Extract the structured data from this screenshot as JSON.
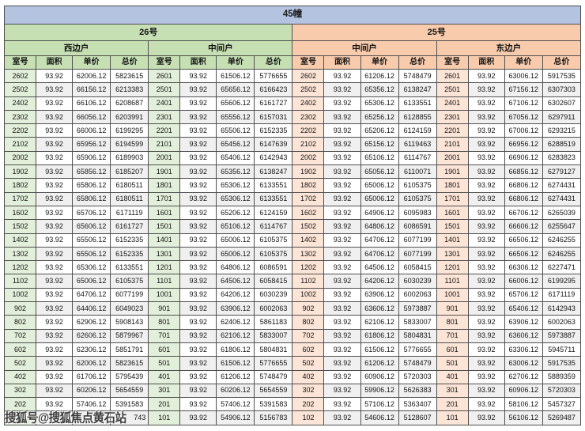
{
  "title": "45幢",
  "watermark": "搜狐号@搜狐焦点黄石站",
  "columns": [
    "室号",
    "面积",
    "单价",
    "总价"
  ],
  "buildings": [
    {
      "name": "26号",
      "units": [
        "西边户",
        "中间户"
      ]
    },
    {
      "name": "25号",
      "units": [
        "中间户",
        "东边户"
      ]
    }
  ],
  "colors": {
    "title_bar": "#b4c3e0",
    "building_26": "#c6e0b4",
    "building_25": "#f8cbad",
    "room_cell_26": "#e2efda",
    "room_cell_25": "#fce4d6",
    "border": "#4f4f4f",
    "alt_row": "#f0f0f0"
  },
  "rows": [
    [
      "2602",
      "93.92",
      "62006.12",
      "5823615",
      "2601",
      "93.92",
      "61506.12",
      "5776655",
      "2602",
      "93.92",
      "61206.12",
      "5748479",
      "2601",
      "93.92",
      "63006.12",
      "5917535"
    ],
    [
      "2502",
      "93.92",
      "66156.12",
      "6213383",
      "2501",
      "93.92",
      "65656.12",
      "6166423",
      "2502",
      "93.92",
      "65356.12",
      "6138247",
      "2501",
      "93.92",
      "67156.12",
      "6307303"
    ],
    [
      "2402",
      "93.92",
      "66106.12",
      "6208687",
      "2401",
      "93.92",
      "65606.12",
      "6161727",
      "2402",
      "93.92",
      "65306.12",
      "6133551",
      "2401",
      "93.92",
      "67106.12",
      "6302607"
    ],
    [
      "2302",
      "93.92",
      "66056.12",
      "6203991",
      "2301",
      "93.92",
      "65556.12",
      "6157031",
      "2302",
      "93.92",
      "65256.12",
      "6128855",
      "2301",
      "93.92",
      "67056.12",
      "6297911"
    ],
    [
      "2202",
      "93.92",
      "66006.12",
      "6199295",
      "2201",
      "93.92",
      "65506.12",
      "6152335",
      "2202",
      "93.92",
      "65206.12",
      "6124159",
      "2201",
      "93.92",
      "67006.12",
      "6293215"
    ],
    [
      "2102",
      "93.92",
      "65956.12",
      "6194599",
      "2101",
      "93.92",
      "65456.12",
      "6147639",
      "2102",
      "93.92",
      "65156.12",
      "6119463",
      "2101",
      "93.92",
      "66956.12",
      "6288519"
    ],
    [
      "2002",
      "93.92",
      "65906.12",
      "6189903",
      "2001",
      "93.92",
      "65406.12",
      "6142943",
      "2002",
      "93.92",
      "65106.12",
      "6114767",
      "2001",
      "93.92",
      "66906.12",
      "6283823"
    ],
    [
      "1902",
      "93.92",
      "65856.12",
      "6185207",
      "1901",
      "93.92",
      "65356.12",
      "6138247",
      "1902",
      "93.92",
      "65056.12",
      "6110071",
      "1901",
      "93.92",
      "66856.12",
      "6279127"
    ],
    [
      "1802",
      "93.92",
      "65806.12",
      "6180511",
      "1801",
      "93.92",
      "65306.12",
      "6133551",
      "1802",
      "93.92",
      "65006.12",
      "6105375",
      "1801",
      "93.92",
      "66806.12",
      "6274431"
    ],
    [
      "1702",
      "93.92",
      "65806.12",
      "6180511",
      "1701",
      "93.92",
      "65306.12",
      "6133551",
      "1702",
      "93.92",
      "65006.12",
      "6105375",
      "1701",
      "93.92",
      "66806.12",
      "6274431"
    ],
    [
      "1602",
      "93.92",
      "65706.12",
      "6171119",
      "1601",
      "93.92",
      "65206.12",
      "6124159",
      "1602",
      "93.92",
      "64906.12",
      "6095983",
      "1601",
      "93.92",
      "66706.12",
      "6265039"
    ],
    [
      "1502",
      "93.92",
      "65606.12",
      "6161727",
      "1501",
      "93.92",
      "65106.12",
      "6114767",
      "1502",
      "93.92",
      "64806.12",
      "6086591",
      "1501",
      "93.92",
      "66606.12",
      "6255647"
    ],
    [
      "1402",
      "93.92",
      "65506.12",
      "6152335",
      "1401",
      "93.92",
      "65006.12",
      "6105375",
      "1402",
      "93.92",
      "64706.12",
      "6077199",
      "1401",
      "93.92",
      "66506.12",
      "6246255"
    ],
    [
      "1302",
      "93.92",
      "65506.12",
      "6152335",
      "1301",
      "93.92",
      "65006.12",
      "6105375",
      "1302",
      "93.92",
      "64706.12",
      "6077199",
      "1301",
      "93.92",
      "66506.12",
      "6246255"
    ],
    [
      "1202",
      "93.92",
      "65306.12",
      "6133551",
      "1201",
      "93.92",
      "64806.12",
      "6086591",
      "1202",
      "93.92",
      "64506.12",
      "6058415",
      "1201",
      "93.92",
      "66306.12",
      "6227471"
    ],
    [
      "1102",
      "93.92",
      "65006.12",
      "6105375",
      "1101",
      "93.92",
      "64506.12",
      "6058415",
      "1102",
      "93.92",
      "64206.12",
      "6030239",
      "1101",
      "93.92",
      "66006.12",
      "6199295"
    ],
    [
      "1002",
      "93.92",
      "64706.12",
      "6077199",
      "1001",
      "93.92",
      "64206.12",
      "6030239",
      "1002",
      "93.92",
      "63906.12",
      "6002063",
      "1001",
      "93.92",
      "65706.12",
      "6171119"
    ],
    [
      "902",
      "93.92",
      "64406.12",
      "6049023",
      "901",
      "93.92",
      "63906.12",
      "6002063",
      "902",
      "93.92",
      "63606.12",
      "5973887",
      "901",
      "93.92",
      "65406.12",
      "6142943"
    ],
    [
      "802",
      "93.92",
      "62906.12",
      "5908143",
      "801",
      "93.92",
      "62406.12",
      "5861183",
      "802",
      "93.92",
      "62106.12",
      "5833007",
      "801",
      "93.92",
      "63906.12",
      "6002063"
    ],
    [
      "702",
      "93.92",
      "62606.12",
      "5879967",
      "701",
      "93.92",
      "62106.12",
      "5833007",
      "702",
      "93.92",
      "61806.12",
      "5804831",
      "701",
      "93.92",
      "63606.12",
      "5973887"
    ],
    [
      "602",
      "93.92",
      "62306.12",
      "5851791",
      "601",
      "93.92",
      "61806.12",
      "5804831",
      "602",
      "93.92",
      "61506.12",
      "5776655",
      "601",
      "93.92",
      "63306.12",
      "5945711"
    ],
    [
      "502",
      "93.92",
      "62006.12",
      "5823615",
      "501",
      "93.92",
      "61506.12",
      "5776655",
      "502",
      "93.92",
      "61206.12",
      "5748479",
      "501",
      "93.92",
      "63006.12",
      "5917535"
    ],
    [
      "402",
      "93.92",
      "61706.12",
      "5795439",
      "401",
      "93.92",
      "61206.12",
      "5748479",
      "402",
      "93.92",
      "60906.12",
      "5720303",
      "401",
      "93.92",
      "62706.12",
      "5889359"
    ],
    [
      "302",
      "93.92",
      "60206.12",
      "5654559",
      "301",
      "93.92",
      "60206.12",
      "5654559",
      "302",
      "93.92",
      "59906.12",
      "5626383",
      "301",
      "93.92",
      "60906.12",
      "5720303"
    ],
    [
      "202",
      "93.92",
      "57406.12",
      "5391583",
      "201",
      "93.92",
      "57406.12",
      "5391583",
      "202",
      "93.92",
      "57106.12",
      "5363407",
      "201",
      "93.92",
      "58106.12",
      "5457327"
    ],
    [
      "",
      "",
      "",
      "743",
      "101",
      "93.92",
      "54906.12",
      "5156783",
      "102",
      "93.92",
      "54606.12",
      "5128607",
      "101",
      "93.92",
      "56106.12",
      "5269487"
    ]
  ]
}
